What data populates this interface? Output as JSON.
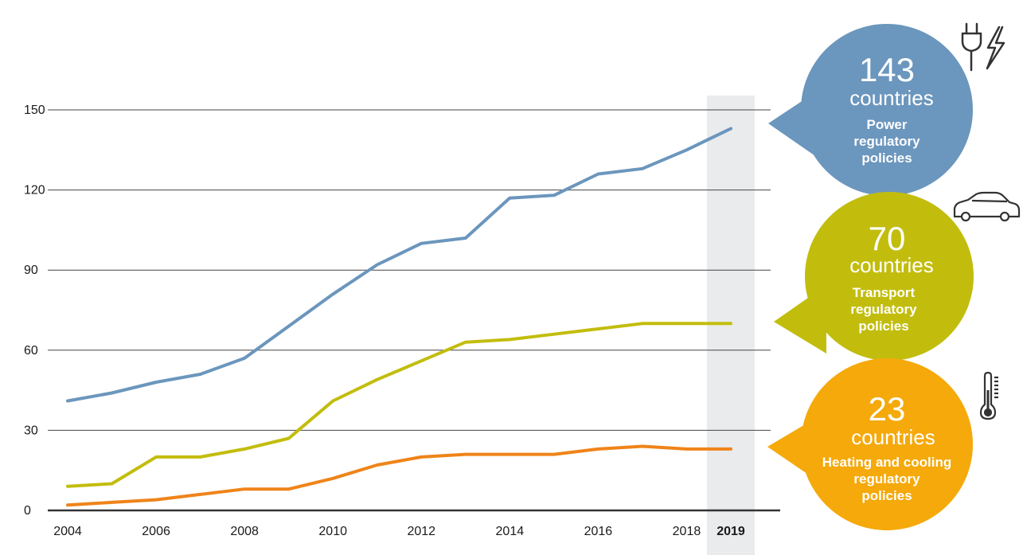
{
  "chart_data": {
    "type": "line",
    "title": "",
    "xlabel": "",
    "ylabel": "",
    "x": [
      2004,
      2005,
      2006,
      2007,
      2008,
      2009,
      2010,
      2011,
      2012,
      2013,
      2014,
      2015,
      2016,
      2017,
      2018,
      2019
    ],
    "x_tick_labels": [
      "2004",
      "2006",
      "2008",
      "2010",
      "2012",
      "2014",
      "2016",
      "2018",
      "2019"
    ],
    "y_tick_labels": [
      "0",
      "30",
      "60",
      "90",
      "120",
      "150"
    ],
    "ylim": [
      0,
      150
    ],
    "highlight_year": "2019",
    "series": [
      {
        "name": "Power regulatory policies",
        "color": "#6b96bd",
        "values": [
          41,
          44,
          48,
          51,
          57,
          69,
          81,
          92,
          100,
          102,
          117,
          118,
          126,
          128,
          135,
          143
        ]
      },
      {
        "name": "Transport regulatory policies",
        "color": "#c2bd0d",
        "values": [
          9,
          10,
          20,
          20,
          23,
          27,
          41,
          49,
          56,
          63,
          64,
          66,
          68,
          70,
          70,
          70
        ]
      },
      {
        "name": "Heating and cooling regulatory policies",
        "color": "#ef8419",
        "values": [
          2,
          3,
          4,
          6,
          8,
          8,
          12,
          17,
          20,
          21,
          21,
          21,
          23,
          24,
          23,
          23
        ]
      }
    ],
    "callouts": [
      {
        "number": "143",
        "unit": "countries",
        "label_lines": [
          "Power",
          "regulatory",
          "policies"
        ],
        "color": "#6b96bd",
        "icon": "plug-lightning-icon"
      },
      {
        "number": "70",
        "unit": "countries",
        "label_lines": [
          "Transport",
          "regulatory",
          "policies"
        ],
        "color": "#c2bd0d",
        "icon": "car-icon"
      },
      {
        "number": "23",
        "unit": "countries",
        "label_lines": [
          "Heating and cooling",
          "regulatory",
          "policies"
        ],
        "color": "#f5a90a",
        "icon": "thermometer-icon"
      }
    ]
  }
}
